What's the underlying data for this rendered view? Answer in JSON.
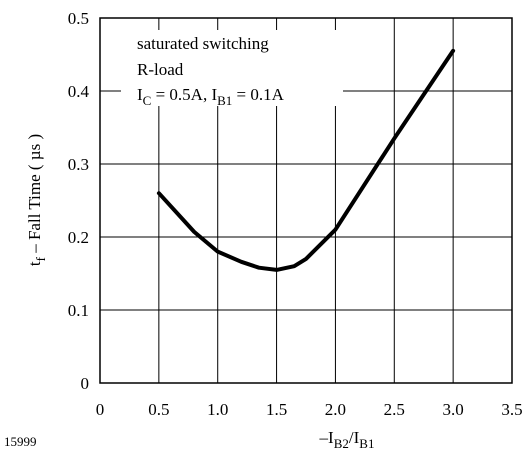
{
  "chart_data": {
    "type": "line",
    "xlabel": "–I",
    "xlabel_sub1": "B2",
    "xlabel_mid": "/I",
    "xlabel_sub2": "B1",
    "ylabel": "t",
    "ylabel_sub": "f",
    "ylabel_rest": " – Fall Time ( µs )",
    "xlim": [
      0,
      3.5
    ],
    "ylim": [
      0,
      0.5
    ],
    "x_ticks": [
      "0",
      "0.5",
      "1.0",
      "1.5",
      "2.0",
      "2.5",
      "3.0",
      "3.5"
    ],
    "x_tick_values": [
      0,
      0.5,
      1.0,
      1.5,
      2.0,
      2.5,
      3.0,
      3.5
    ],
    "y_ticks": [
      "0",
      "0.1",
      "0.2",
      "0.3",
      "0.4",
      "0.5"
    ],
    "y_tick_values": [
      0,
      0.1,
      0.2,
      0.3,
      0.4,
      0.5
    ],
    "grid": true,
    "annotation": {
      "line1": "saturated switching",
      "line2": "R-load",
      "line3_a": "I",
      "line3_a_sub": "C",
      "line3_b": " = 0.5A, I",
      "line3_b_sub": "B1",
      "line3_c": " = 0.1A"
    },
    "figure_id": "15999",
    "series": [
      {
        "x": [
          0.5,
          0.8,
          1.0,
          1.2,
          1.35,
          1.5,
          1.65,
          1.75,
          2.0,
          2.5,
          3.0
        ],
        "y": [
          0.26,
          0.207,
          0.18,
          0.166,
          0.158,
          0.155,
          0.16,
          0.17,
          0.21,
          0.335,
          0.455
        ]
      }
    ],
    "line_color": "#000000"
  }
}
